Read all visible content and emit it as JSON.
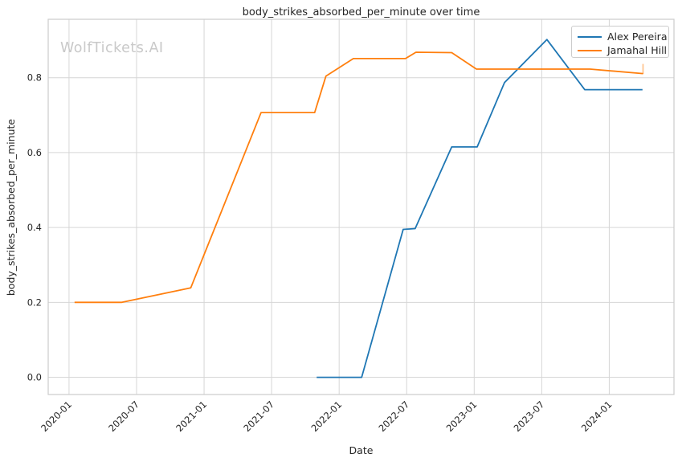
{
  "watermark": "WolfTickets.AI",
  "chart_data": {
    "type": "line",
    "title": "body_strikes_absorbed_per_minute over time",
    "xlabel": "Date",
    "ylabel": "body_strikes_absorbed_per_minute",
    "grid": true,
    "legend_position": "upper right",
    "x_tick_labels": [
      "2020-01",
      "2020-07",
      "2021-01",
      "2021-07",
      "2022-01",
      "2022-07",
      "2023-01",
      "2023-07",
      "2024-01"
    ],
    "y_tick_labels": [
      "0.0",
      "0.2",
      "0.4",
      "0.6",
      "0.8"
    ],
    "x_range_months_from_2020_01": [
      -1.85,
      53.75
    ],
    "ylim": [
      -0.046,
      0.956
    ],
    "series": [
      {
        "name": "Alex Pereira",
        "color": "#1f77b4",
        "points": [
          [
            "2021-11-01",
            0.0
          ],
          [
            "2022-03-01",
            0.0
          ],
          [
            "2022-06-22",
            0.395
          ],
          [
            "2022-07-24",
            0.397
          ],
          [
            "2022-11-01",
            0.615
          ],
          [
            "2023-01-09",
            0.615
          ],
          [
            "2023-03-22",
            0.787
          ],
          [
            "2023-07-15",
            0.902
          ],
          [
            "2023-10-26",
            0.768
          ],
          [
            "2024-03-30",
            0.768
          ]
        ]
      },
      {
        "name": "Jamahal Hill",
        "color": "#ff7f0e",
        "end_cap": true,
        "points": [
          [
            "2020-01-16",
            0.2
          ],
          [
            "2020-05-22",
            0.2
          ],
          [
            "2020-11-26",
            0.239
          ],
          [
            "2021-06-03",
            0.707
          ],
          [
            "2021-10-26",
            0.707
          ],
          [
            "2021-11-26",
            0.804
          ],
          [
            "2022-02-09",
            0.851
          ],
          [
            "2022-06-28",
            0.851
          ],
          [
            "2022-07-26",
            0.868
          ],
          [
            "2022-11-01",
            0.867
          ],
          [
            "2023-01-07",
            0.823
          ],
          [
            "2023-11-10",
            0.823
          ],
          [
            "2024-04-01",
            0.811
          ]
        ]
      }
    ],
    "colors": {
      "grid": "#d6d6d6",
      "spine": "#cccccc",
      "text": "#262626",
      "watermark": "#c9c9c9",
      "background": "#ffffff"
    }
  }
}
